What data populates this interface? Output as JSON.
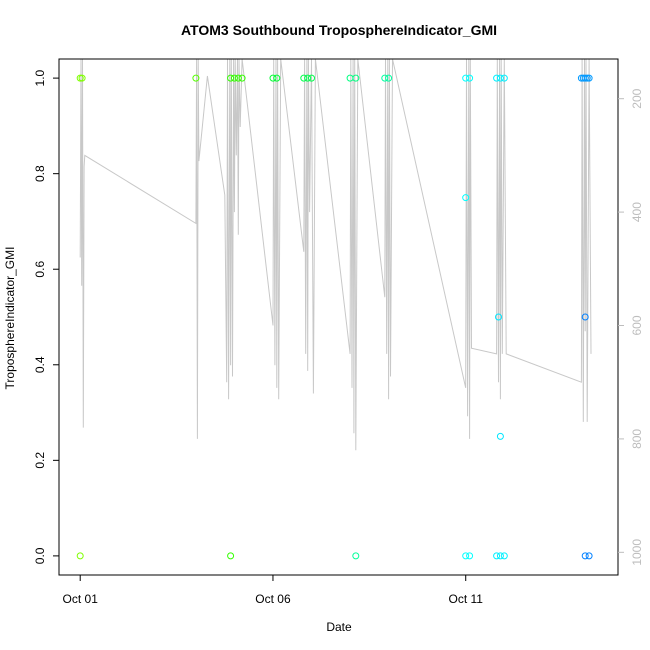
{
  "chart_data": {
    "type": "scatter",
    "title": "ATOM3 Southbound TroposphereIndicator_GMI",
    "xlabel": "Date",
    "ylabel": "TroposphereIndicator_GMI",
    "x_ticks": [
      "Oct 01",
      "Oct 06",
      "Oct 11"
    ],
    "x_tick_days": [
      1,
      6,
      11
    ],
    "xlim_days": [
      0.45,
      14.95
    ],
    "ylim": [
      -0.04,
      1.04
    ],
    "y_ticks": [
      "0.0",
      "0.2",
      "0.4",
      "0.6",
      "0.8",
      "1.0"
    ],
    "y_tick_values": [
      0,
      0.2,
      0.4,
      0.6,
      0.8,
      1.0
    ],
    "right_axis": {
      "label": "",
      "ticks": [
        "200",
        "400",
        "600",
        "800",
        "1000"
      ],
      "tick_values": [
        200,
        400,
        600,
        800,
        1000
      ],
      "lim": [
        1040,
        130
      ],
      "color": "#bdbdbd"
    },
    "points": [
      {
        "x": 1.0,
        "y": 1.0,
        "color": "#7fff00"
      },
      {
        "x": 1.05,
        "y": 1.0,
        "color": "#7fff00"
      },
      {
        "x": 1.0,
        "y": 0.0,
        "color": "#7fff00"
      },
      {
        "x": 4.0,
        "y": 1.0,
        "color": "#55ff00"
      },
      {
        "x": 4.9,
        "y": 1.0,
        "color": "#33ff00"
      },
      {
        "x": 5.0,
        "y": 1.0,
        "color": "#33ff00"
      },
      {
        "x": 5.1,
        "y": 1.0,
        "color": "#33ff00"
      },
      {
        "x": 5.2,
        "y": 1.0,
        "color": "#33ff00"
      },
      {
        "x": 4.9,
        "y": 0.0,
        "color": "#33ff00"
      },
      {
        "x": 6.0,
        "y": 1.0,
        "color": "#00ff33"
      },
      {
        "x": 6.1,
        "y": 1.0,
        "color": "#00ff33"
      },
      {
        "x": 6.8,
        "y": 1.0,
        "color": "#00ff4c"
      },
      {
        "x": 6.9,
        "y": 1.0,
        "color": "#00ff4c"
      },
      {
        "x": 7.0,
        "y": 1.0,
        "color": "#00ff4c"
      },
      {
        "x": 8.0,
        "y": 1.0,
        "color": "#00ff80"
      },
      {
        "x": 8.15,
        "y": 1.0,
        "color": "#00ff80"
      },
      {
        "x": 8.15,
        "y": 0.0,
        "color": "#00ff99"
      },
      {
        "x": 8.9,
        "y": 1.0,
        "color": "#00ffa0"
      },
      {
        "x": 9.0,
        "y": 1.0,
        "color": "#00ffa0"
      },
      {
        "x": 11.0,
        "y": 1.0,
        "color": "#00ffff"
      },
      {
        "x": 11.1,
        "y": 1.0,
        "color": "#00ffff"
      },
      {
        "x": 11.0,
        "y": 0.75,
        "color": "#00ffff"
      },
      {
        "x": 11.0,
        "y": 0.0,
        "color": "#00ffff"
      },
      {
        "x": 11.1,
        "y": 0.0,
        "color": "#00ffff"
      },
      {
        "x": 11.8,
        "y": 1.0,
        "color": "#00f0ff"
      },
      {
        "x": 11.9,
        "y": 1.0,
        "color": "#00f0ff"
      },
      {
        "x": 12.0,
        "y": 1.0,
        "color": "#00f0ff"
      },
      {
        "x": 11.85,
        "y": 0.5,
        "color": "#00e6ff"
      },
      {
        "x": 11.9,
        "y": 0.25,
        "color": "#00e6ff"
      },
      {
        "x": 11.8,
        "y": 0.0,
        "color": "#00f0ff"
      },
      {
        "x": 11.9,
        "y": 0.0,
        "color": "#00f0ff"
      },
      {
        "x": 12.0,
        "y": 0.0,
        "color": "#00f0ff"
      },
      {
        "x": 14.0,
        "y": 1.0,
        "color": "#0099ff"
      },
      {
        "x": 14.05,
        "y": 1.0,
        "color": "#0099ff"
      },
      {
        "x": 14.1,
        "y": 1.0,
        "color": "#0099ff"
      },
      {
        "x": 14.15,
        "y": 1.0,
        "color": "#0099ff"
      },
      {
        "x": 14.2,
        "y": 1.0,
        "color": "#0099ff"
      },
      {
        "x": 14.1,
        "y": 0.5,
        "color": "#0080ff"
      },
      {
        "x": 14.1,
        "y": 0.0,
        "color": "#0080ff"
      },
      {
        "x": 14.2,
        "y": 0.0,
        "color": "#0080ff"
      }
    ],
    "profile_line": {
      "color": "#c8c8c8",
      "x": [
        1.0,
        1.02,
        1.04,
        1.06,
        1.08,
        1.1,
        1.12,
        4.0,
        4.02,
        4.04,
        4.06,
        4.08,
        4.3,
        4.75,
        4.8,
        4.82,
        4.85,
        4.88,
        4.9,
        4.92,
        4.95,
        4.98,
        5.0,
        5.02,
        5.05,
        5.08,
        5.1,
        5.12,
        5.15,
        5.2,
        6.0,
        6.02,
        6.05,
        6.08,
        6.1,
        6.12,
        6.15,
        6.2,
        6.8,
        6.82,
        6.85,
        6.88,
        6.9,
        6.92,
        6.95,
        7.0,
        7.05,
        7.1,
        8.0,
        8.02,
        8.05,
        8.08,
        8.1,
        8.12,
        8.15,
        8.2,
        8.9,
        8.92,
        8.95,
        8.98,
        9.0,
        9.02,
        9.05,
        9.1,
        11.0,
        11.02,
        11.05,
        11.08,
        11.1,
        11.12,
        11.15,
        11.8,
        11.82,
        11.85,
        11.88,
        11.9,
        11.92,
        11.95,
        12.0,
        12.05,
        14.0,
        14.02,
        14.05,
        14.08,
        14.1,
        14.12,
        14.15,
        14.2,
        14.25
      ],
      "y_right": [
        480,
        130,
        530,
        130,
        780,
        320,
        300,
        420,
        130,
        800,
        130,
        310,
        160,
        370,
        700,
        130,
        730,
        130,
        670,
        130,
        690,
        130,
        400,
        130,
        300,
        130,
        440,
        130,
        250,
        130,
        600,
        130,
        670,
        130,
        710,
        130,
        730,
        130,
        470,
        130,
        650,
        130,
        680,
        130,
        400,
        130,
        720,
        130,
        650,
        130,
        710,
        130,
        790,
        130,
        820,
        130,
        550,
        130,
        650,
        130,
        730,
        130,
        690,
        130,
        710,
        130,
        760,
        130,
        800,
        130,
        640,
        650,
        130,
        700,
        130,
        730,
        130,
        650,
        130,
        650,
        700,
        130,
        770,
        130,
        610,
        130,
        770,
        130,
        650
      ]
    }
  }
}
